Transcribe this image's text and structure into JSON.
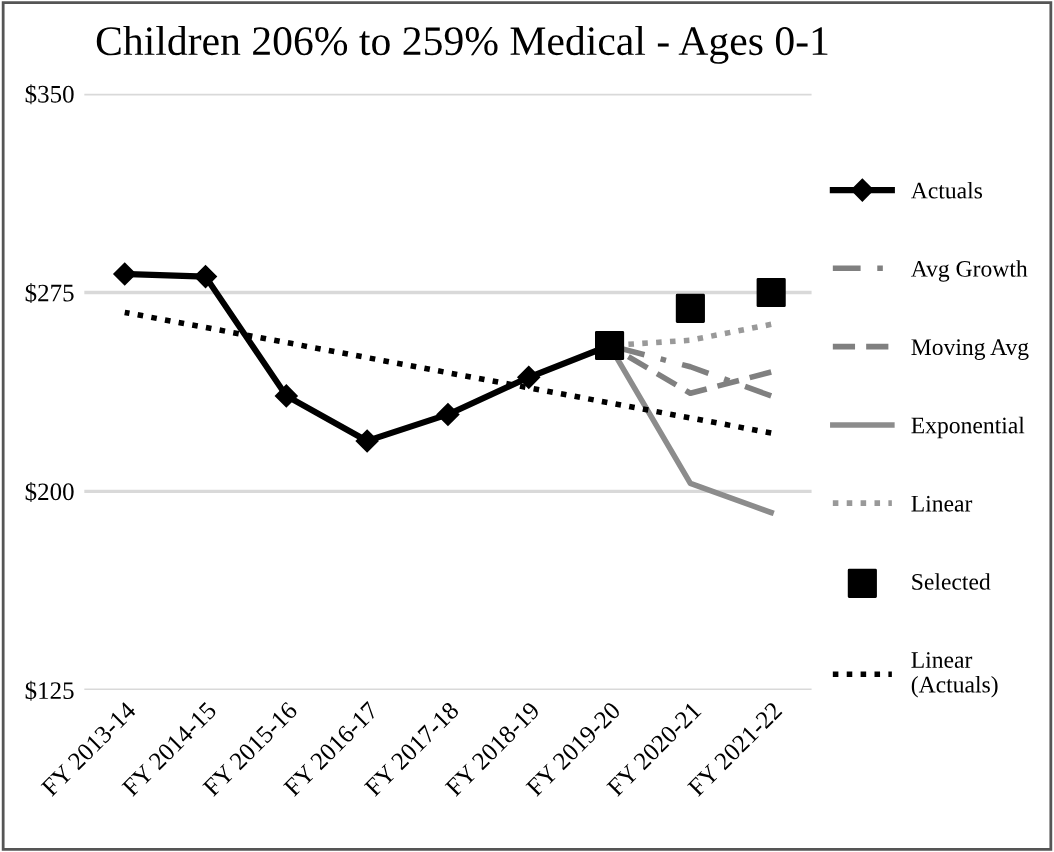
{
  "chart_data": {
    "type": "line",
    "title": "Children 206% to 259% Medical - Ages 0-1",
    "categories": [
      "FY 2013-14",
      "FY 2014-15",
      "FY 2015-16",
      "FY 2016-17",
      "FY 2017-18",
      "FY 2018-19",
      "FY 2019-20",
      "FY 2020-21",
      "FY 2021-22"
    ],
    "series": [
      {
        "name": "Actuals",
        "color": "#000000",
        "values": [
          282,
          281,
          236,
          219,
          229,
          243,
          255,
          null,
          null
        ],
        "marker": "diamond",
        "line_style": "solid"
      },
      {
        "name": "Avg Growth",
        "color": "#808080",
        "values": [
          null,
          null,
          null,
          null,
          null,
          null,
          255,
          247,
          236
        ],
        "marker": "none",
        "line_style": "dashdot"
      },
      {
        "name": "Moving Avg",
        "color": "#808080",
        "values": [
          null,
          null,
          null,
          null,
          null,
          null,
          255,
          237,
          245
        ],
        "marker": "none",
        "line_style": "dashed"
      },
      {
        "name": "Exponential",
        "color": "#8c8c8c",
        "values": [
          null,
          null,
          null,
          null,
          null,
          null,
          255,
          203,
          192
        ],
        "marker": "none",
        "line_style": "solid"
      },
      {
        "name": "Linear",
        "color": "#999999",
        "values": [
          null,
          null,
          null,
          null,
          null,
          null,
          255,
          257,
          263
        ],
        "marker": "none",
        "line_style": "dotted"
      },
      {
        "name": "Selected",
        "type": "scatter",
        "color": "#000000",
        "values": [
          null,
          null,
          null,
          null,
          null,
          null,
          255,
          269,
          275
        ],
        "marker": "square"
      },
      {
        "name": "Linear\n(Actuals)",
        "color": "#000000",
        "values": [
          267.5,
          null,
          null,
          null,
          null,
          null,
          null,
          null,
          222
        ],
        "marker": "none",
        "line_style": "dotted"
      }
    ],
    "ylim": [
      125,
      350
    ],
    "yticks": [
      {
        "value": 125,
        "label": "$125"
      },
      {
        "value": 200,
        "label": "$200"
      },
      {
        "value": 275,
        "label": "$275"
      },
      {
        "value": 350,
        "label": "$350"
      }
    ],
    "grid": "y",
    "legend": "right"
  }
}
